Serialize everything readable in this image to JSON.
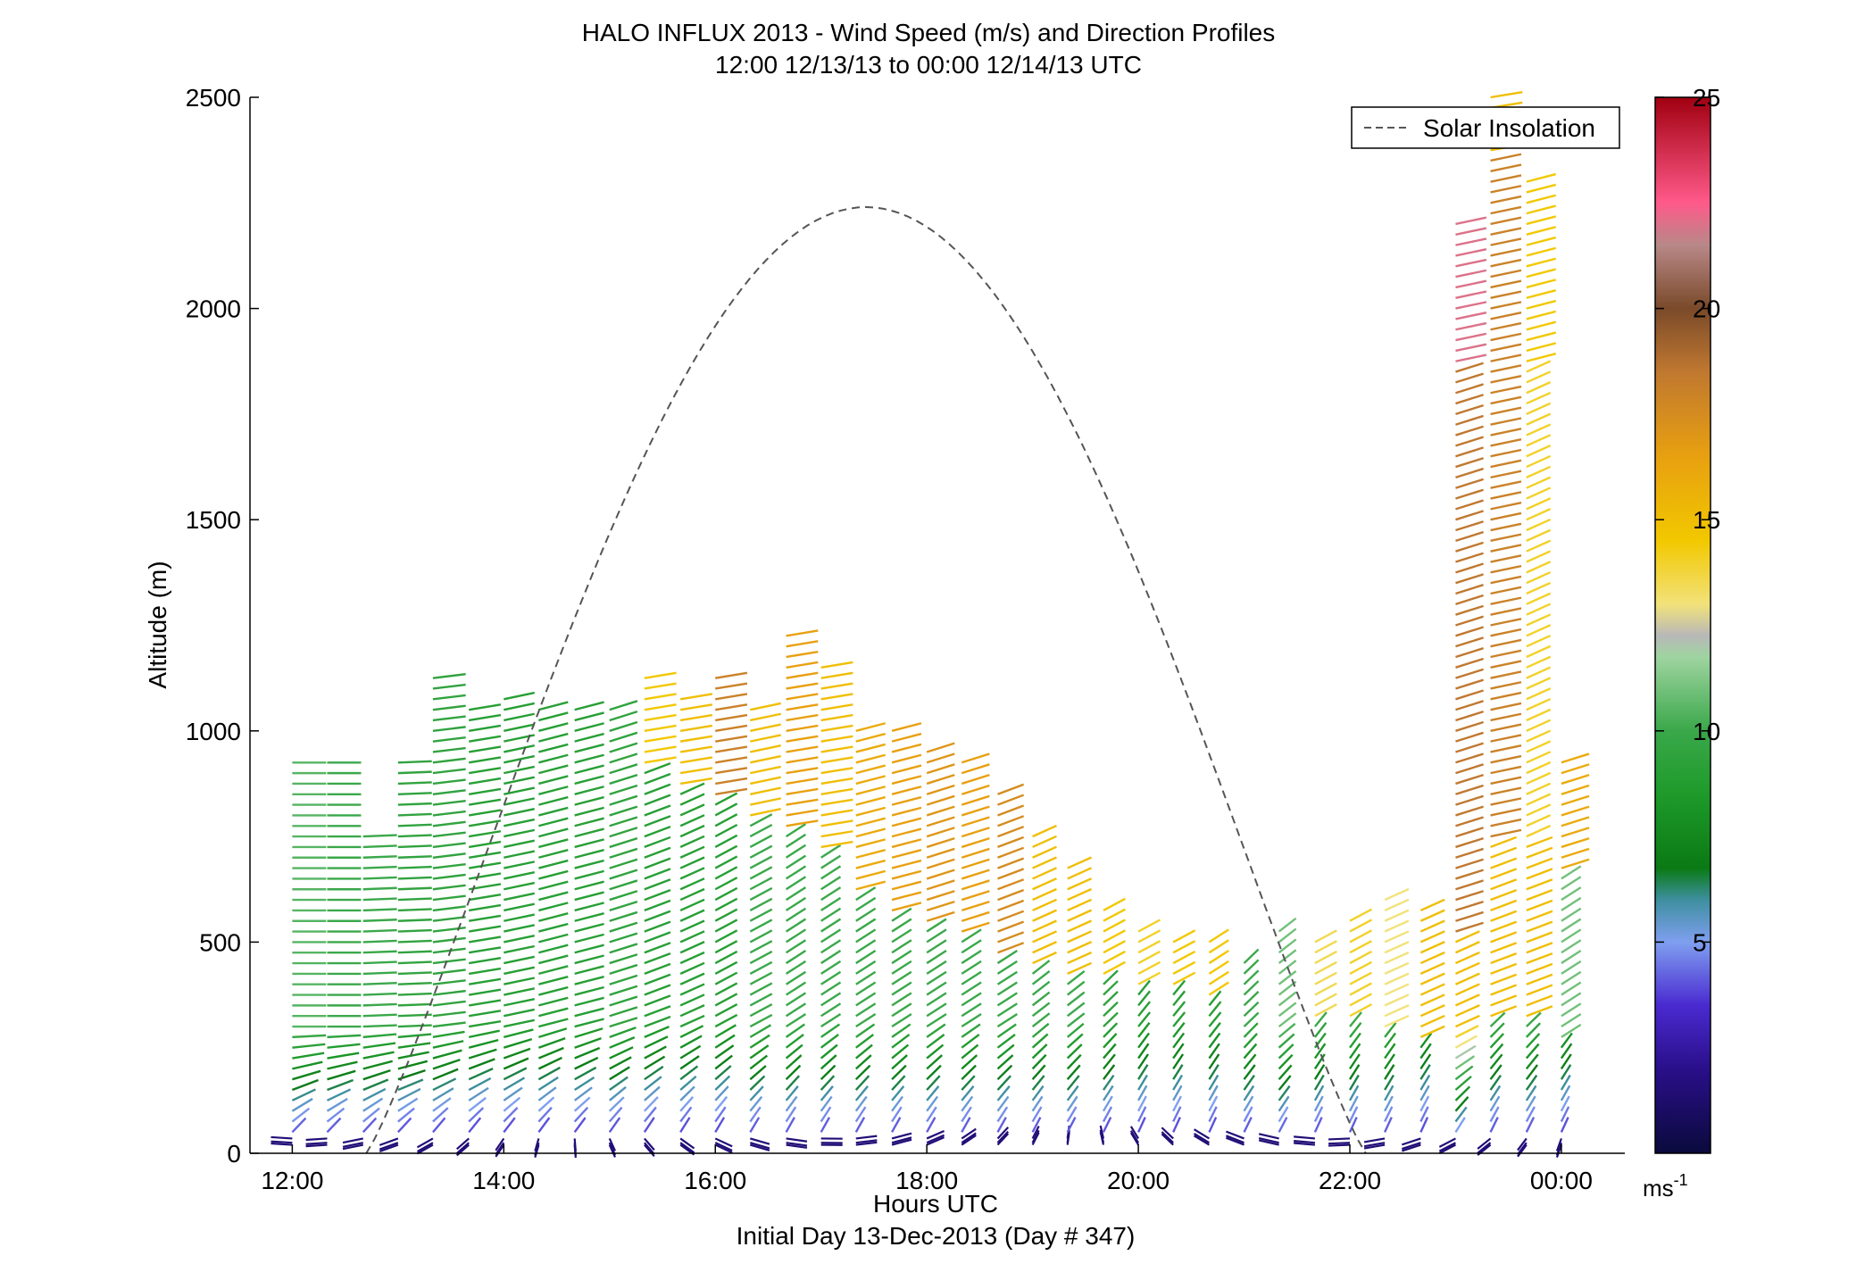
{
  "chart_data": {
    "type": "wind barb profile",
    "title": "HALO INFLUX 2013 - Wind Speed (m/s) and Direction Profiles",
    "subtitle": "12:00 12/13/13 to 00:00 12/14/13  UTC",
    "xlabel": "Hours UTC",
    "xlabel2": "Initial Day 13-Dec-2013 (Day # 347)",
    "ylabel": "Altitude (m)",
    "xlim": [
      11.6,
      24.6
    ],
    "ylim": [
      0,
      2500
    ],
    "x_ticks": [
      {
        "value": 12,
        "label": "12:00"
      },
      {
        "value": 14,
        "label": "14:00"
      },
      {
        "value": 16,
        "label": "16:00"
      },
      {
        "value": 18,
        "label": "18:00"
      },
      {
        "value": 20,
        "label": "20:00"
      },
      {
        "value": 22,
        "label": "22:00"
      },
      {
        "value": 24,
        "label": "00:00"
      }
    ],
    "y_ticks": [
      0,
      500,
      1000,
      1500,
      2000,
      2500
    ],
    "legend": {
      "position": "top-right",
      "entries": [
        "Solar Insolation"
      ]
    },
    "colorbar": {
      "range": [
        0,
        25
      ],
      "ticks": [
        5,
        10,
        15,
        20,
        25
      ],
      "unit_label": "ms",
      "unit_exponent": "-1"
    },
    "solar_insolation": {
      "style": "dashed",
      "color": "#555555",
      "sunrise_hour": 12.7,
      "sunset_hour": 22.15,
      "peak_hour": 17.43,
      "peak_altitude": 2240
    },
    "wind_profiles": [
      {
        "hour": 12.0,
        "segments": [
          {
            "top": 940,
            "speed": 10.5,
            "dir": 270
          }
        ]
      },
      {
        "hour": 12.33,
        "segments": [
          {
            "top": 930,
            "speed": 10.0,
            "dir": 270
          }
        ]
      },
      {
        "hour": 12.67,
        "segments": [
          {
            "top": 760,
            "speed": 10.0,
            "dir": 265
          }
        ]
      },
      {
        "hour": 13.0,
        "segments": [
          {
            "top": 930,
            "speed": 9.5,
            "dir": 265
          }
        ]
      },
      {
        "hour": 13.33,
        "segments": [
          {
            "top": 1130,
            "speed": 9.5,
            "dir": 255
          }
        ]
      },
      {
        "hour": 13.67,
        "segments": [
          {
            "top": 1060,
            "speed": 9.0,
            "dir": 250
          }
        ]
      },
      {
        "hour": 14.0,
        "segments": [
          {
            "top": 1080,
            "speed": 9.0,
            "dir": 245
          }
        ]
      },
      {
        "hour": 14.33,
        "segments": [
          {
            "top": 1060,
            "speed": 9.0,
            "dir": 240
          }
        ]
      },
      {
        "hour": 14.67,
        "segments": [
          {
            "top": 1060,
            "speed": 9.0,
            "dir": 240
          }
        ]
      },
      {
        "hour": 15.0,
        "segments": [
          {
            "top": 1060,
            "speed": 9.5,
            "dir": 235
          }
        ]
      },
      {
        "hour": 15.33,
        "segments": [
          {
            "top": 900,
            "speed": 9.0,
            "dir": 230
          },
          {
            "top": 1130,
            "speed": 14.5,
            "dir": 250
          }
        ]
      },
      {
        "hour": 15.67,
        "segments": [
          {
            "top": 860,
            "speed": 9.0,
            "dir": 225
          },
          {
            "top": 1090,
            "speed": 15.0,
            "dir": 250
          }
        ]
      },
      {
        "hour": 16.0,
        "segments": [
          {
            "top": 840,
            "speed": 9.0,
            "dir": 220
          },
          {
            "top": 1130,
            "speed": 18.0,
            "dir": 250
          }
        ]
      },
      {
        "hour": 16.33,
        "segments": [
          {
            "top": 780,
            "speed": 10.0,
            "dir": 220
          },
          {
            "top": 1060,
            "speed": 15.0,
            "dir": 245
          }
        ]
      },
      {
        "hour": 16.67,
        "segments": [
          {
            "top": 760,
            "speed": 10.0,
            "dir": 215
          },
          {
            "top": 1240,
            "speed": 16.5,
            "dir": 250
          }
        ]
      },
      {
        "hour": 17.0,
        "segments": [
          {
            "top": 700,
            "speed": 10.0,
            "dir": 215
          },
          {
            "top": 1170,
            "speed": 15.0,
            "dir": 250
          }
        ]
      },
      {
        "hour": 17.33,
        "segments": [
          {
            "top": 620,
            "speed": 10.0,
            "dir": 215
          },
          {
            "top": 1010,
            "speed": 16.0,
            "dir": 240
          }
        ]
      },
      {
        "hour": 17.67,
        "segments": [
          {
            "top": 560,
            "speed": 10.0,
            "dir": 215
          },
          {
            "top": 1010,
            "speed": 16.5,
            "dir": 240
          }
        ]
      },
      {
        "hour": 18.0,
        "segments": [
          {
            "top": 540,
            "speed": 10.0,
            "dir": 215
          },
          {
            "top": 960,
            "speed": 17.0,
            "dir": 235
          }
        ]
      },
      {
        "hour": 18.33,
        "segments": [
          {
            "top": 500,
            "speed": 10.0,
            "dir": 215
          },
          {
            "top": 930,
            "speed": 16.5,
            "dir": 235
          }
        ]
      },
      {
        "hour": 18.67,
        "segments": [
          {
            "top": 460,
            "speed": 10.0,
            "dir": 215
          },
          {
            "top": 860,
            "speed": 17.5,
            "dir": 230
          }
        ]
      },
      {
        "hour": 19.0,
        "segments": [
          {
            "top": 440,
            "speed": 10.0,
            "dir": 210
          },
          {
            "top": 760,
            "speed": 15.0,
            "dir": 225
          }
        ]
      },
      {
        "hour": 19.33,
        "segments": [
          {
            "top": 420,
            "speed": 10.0,
            "dir": 210
          },
          {
            "top": 680,
            "speed": 15.0,
            "dir": 225
          }
        ]
      },
      {
        "hour": 19.67,
        "segments": [
          {
            "top": 400,
            "speed": 9.5,
            "dir": 205
          },
          {
            "top": 590,
            "speed": 14.5,
            "dir": 220
          }
        ]
      },
      {
        "hour": 20.0,
        "segments": [
          {
            "top": 380,
            "speed": 9.0,
            "dir": 200
          },
          {
            "top": 540,
            "speed": 14.0,
            "dir": 220
          }
        ]
      },
      {
        "hour": 20.33,
        "segments": [
          {
            "top": 380,
            "speed": 9.0,
            "dir": 200
          },
          {
            "top": 510,
            "speed": 14.5,
            "dir": 220
          }
        ]
      },
      {
        "hour": 20.67,
        "segments": [
          {
            "top": 360,
            "speed": 9.0,
            "dir": 200
          },
          {
            "top": 520,
            "speed": 14.5,
            "dir": 215
          }
        ]
      },
      {
        "hour": 21.0,
        "segments": [
          {
            "top": 450,
            "speed": 10.0,
            "dir": 205
          }
        ]
      },
      {
        "hour": 21.33,
        "segments": [
          {
            "top": 530,
            "speed": 11.0,
            "dir": 210
          }
        ]
      },
      {
        "hour": 21.67,
        "segments": [
          {
            "top": 300,
            "speed": 10.0,
            "dir": 200
          },
          {
            "top": 520,
            "speed": 13.5,
            "dir": 220
          }
        ]
      },
      {
        "hour": 22.0,
        "segments": [
          {
            "top": 300,
            "speed": 10.0,
            "dir": 200
          },
          {
            "top": 550,
            "speed": 14.0,
            "dir": 220
          }
        ]
      },
      {
        "hour": 22.33,
        "segments": [
          {
            "top": 280,
            "speed": 10.0,
            "dir": 200
          },
          {
            "top": 620,
            "speed": 13.0,
            "dir": 225
          }
        ]
      },
      {
        "hour": 22.67,
        "segments": [
          {
            "top": 260,
            "speed": 9.0,
            "dir": 200
          },
          {
            "top": 580,
            "speed": 15.0,
            "dir": 225
          }
        ]
      },
      {
        "hour": 23.0,
        "segments": [
          {
            "top": 520,
            "speed": 15.0,
            "dir": 225
          },
          {
            "top": 1850,
            "speed": 18.5,
            "dir": 235
          },
          {
            "top": 2210,
            "speed": 22.0,
            "dir": 245
          }
        ]
      },
      {
        "hour": 23.33,
        "segments": [
          {
            "top": 300,
            "speed": 10.0,
            "dir": 205
          },
          {
            "top": 740,
            "speed": 15.0,
            "dir": 230
          },
          {
            "top": 2370,
            "speed": 18.0,
            "dir": 245
          },
          {
            "top": 2500,
            "speed": 15.0,
            "dir": 250
          }
        ]
      },
      {
        "hour": 23.67,
        "segments": [
          {
            "top": 300,
            "speed": 10.0,
            "dir": 205
          },
          {
            "top": 730,
            "speed": 15.0,
            "dir": 230
          },
          {
            "top": 1860,
            "speed": 14.0,
            "dir": 225
          },
          {
            "top": 2320,
            "speed": 14.5,
            "dir": 240
          }
        ]
      },
      {
        "hour": 24.0,
        "segments": [
          {
            "top": 260,
            "speed": 9.0,
            "dir": 200
          },
          {
            "top": 660,
            "speed": 11.0,
            "dir": 215
          },
          {
            "top": 930,
            "speed": 16.0,
            "dir": 235
          }
        ]
      }
    ]
  }
}
